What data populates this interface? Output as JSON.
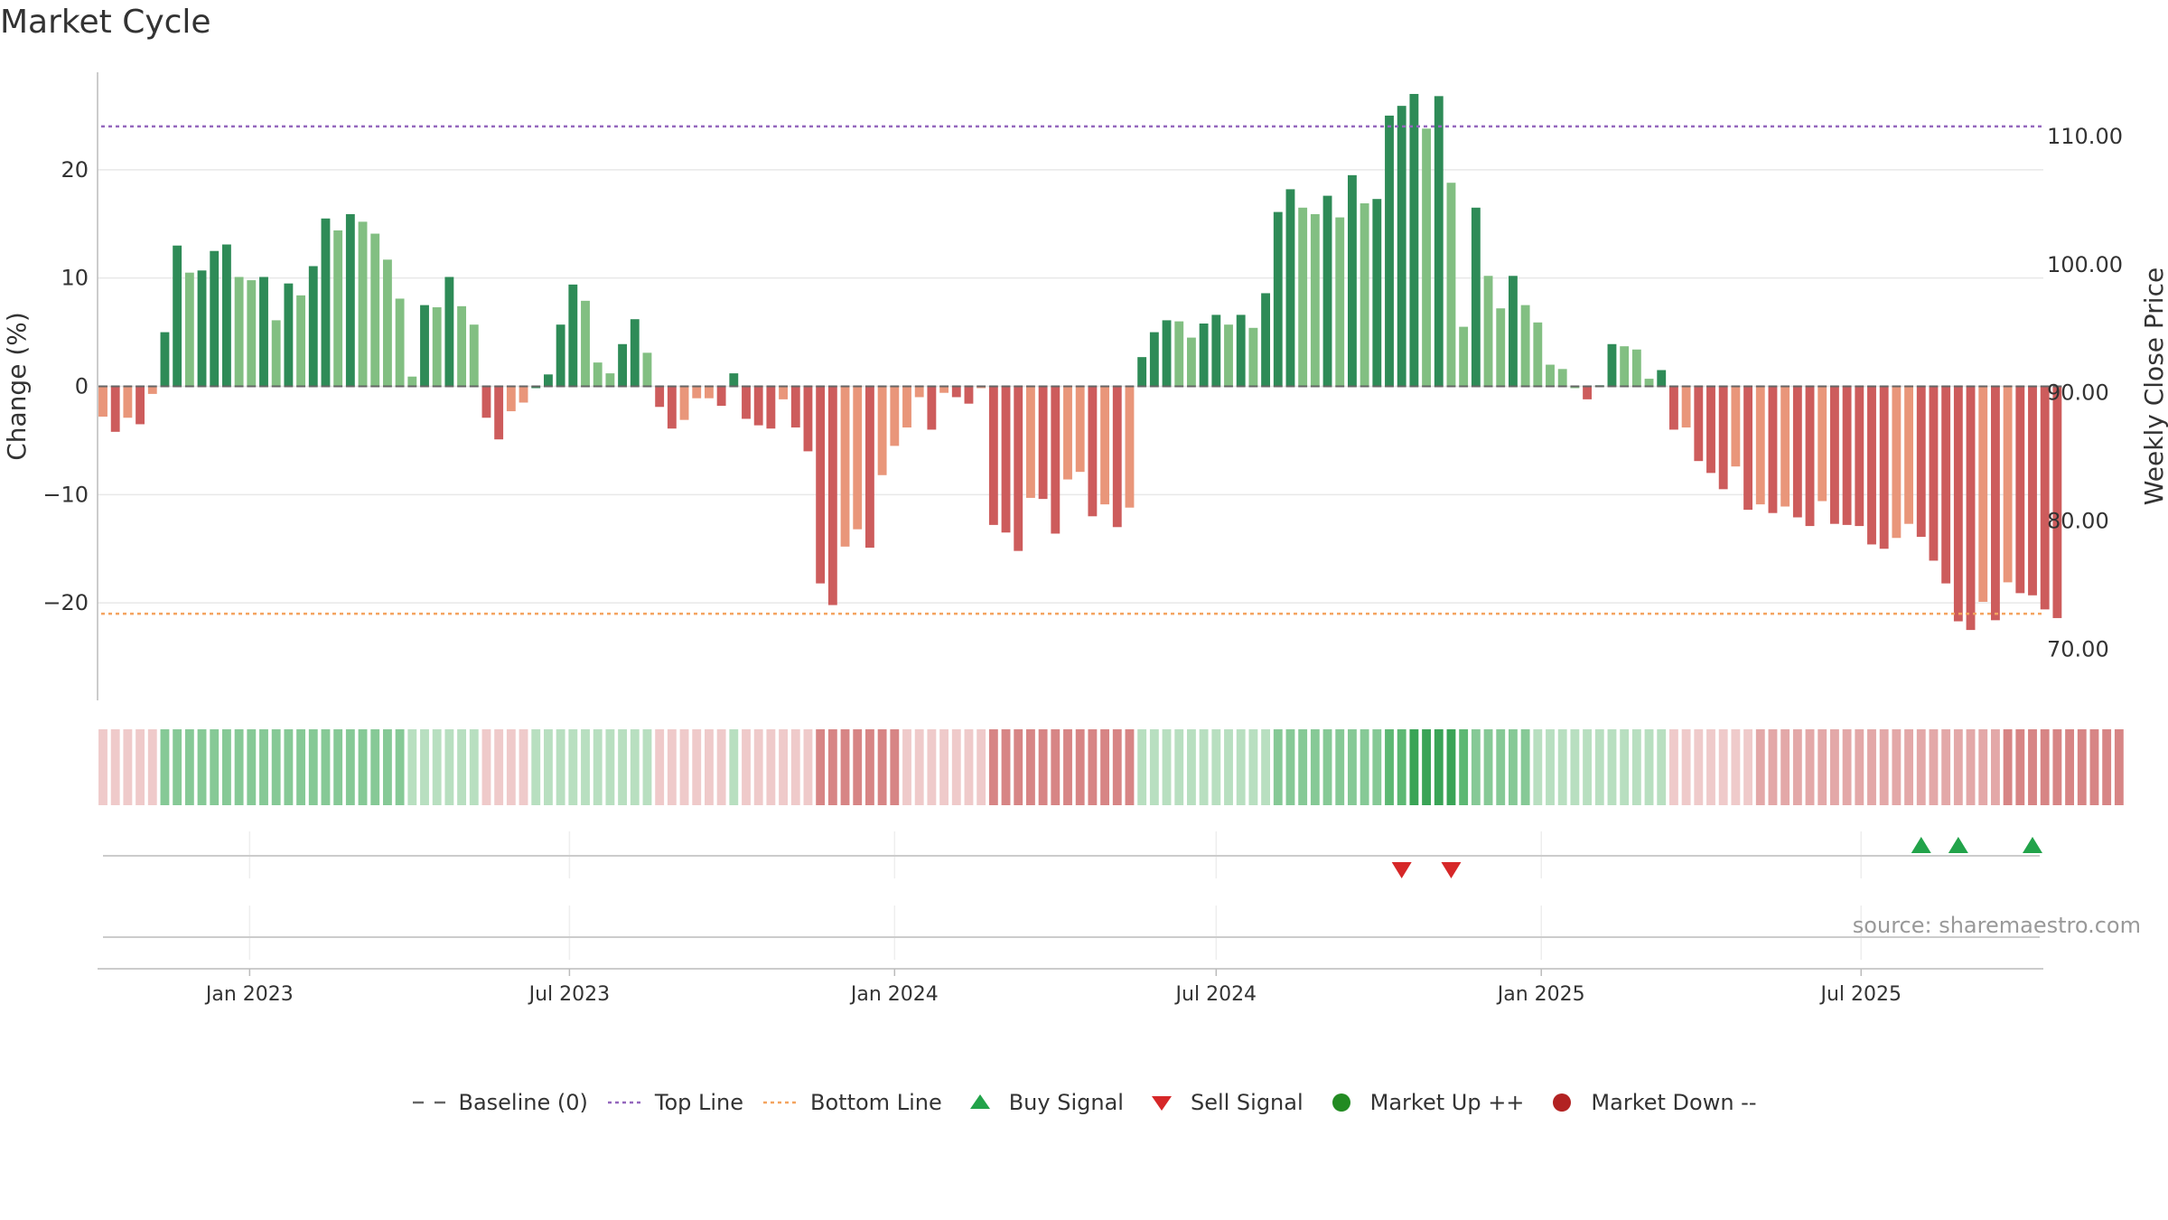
{
  "title": "Market Cycle",
  "source_label": "source: sharemaestro.com",
  "colors": {
    "up_dark": "#2e8b57",
    "up_light": "#82bf82",
    "down_dark": "#cd5c5c",
    "down_light": "#e9967a",
    "top_line": "#9467bd",
    "bottom_line": "#f4a460",
    "buy": "#22a34a",
    "sell": "#d62728",
    "market_up": "#228b22",
    "market_down": "#b22222"
  },
  "legend": [
    {
      "label": "Baseline (0)",
      "symbol": "dash",
      "color": "#666666"
    },
    {
      "label": "Top Line",
      "symbol": "dot-purple",
      "color": "#9467bd"
    },
    {
      "label": "Bottom Line",
      "symbol": "dot-orange",
      "color": "#f4a460"
    },
    {
      "label": "Buy Signal",
      "symbol": "tri-up",
      "color": "#22a34a"
    },
    {
      "label": "Sell Signal",
      "symbol": "tri-down",
      "color": "#d62728"
    },
    {
      "label": "Market Up ++",
      "symbol": "circle",
      "color": "#228b22"
    },
    {
      "label": "Market Down --",
      "symbol": "circle",
      "color": "#b22222"
    }
  ],
  "chart_data": {
    "type": "bar",
    "title": "Market Cycle",
    "ylabel": "Change (%)",
    "y2label": "Weekly Close Price",
    "ylim": [
      -29,
      29
    ],
    "y_ticks": [
      -20,
      -10,
      0,
      10,
      20
    ],
    "y_tick_labels": [
      "−20",
      "−10",
      "0",
      "10",
      "20"
    ],
    "y2_ticks": [
      70,
      80,
      90,
      100,
      110
    ],
    "y2_tick_labels": [
      "70.00",
      "80.00",
      "90.00",
      "100.00",
      "110.00"
    ],
    "y2lim": [
      66,
      115
    ],
    "x_range": [
      "2022-10-10",
      "2025-10-06"
    ],
    "x_ticks": [
      "2023-01-01",
      "2023-07-01",
      "2024-01-01",
      "2024-07-01",
      "2025-01-01",
      "2025-07-01"
    ],
    "x_tick_labels": [
      "Jan 2023",
      "Jul 2023",
      "Jan 2024",
      "Jul 2024",
      "Jan 2025",
      "Jul 2025"
    ],
    "top_line": 24,
    "bottom_line": -21,
    "grid": true,
    "legend_position": "bottom",
    "start_date": "2022-10-10",
    "values": [
      -2.8,
      -4.2,
      -2.9,
      -3.5,
      -0.7,
      5,
      13,
      10.5,
      10.7,
      12.5,
      13.1,
      10.1,
      9.8,
      10.1,
      6.1,
      9.5,
      8.4,
      11.1,
      15.5,
      14.4,
      15.9,
      15.2,
      14.1,
      11.7,
      8.1,
      0.9,
      7.5,
      7.3,
      10.1,
      7.4,
      5.7,
      -2.9,
      -4.9,
      -2.3,
      -1.5,
      0.0,
      1.1,
      5.7,
      9.4,
      7.9,
      2.2,
      1.2,
      3.9,
      6.2,
      3.1,
      -1.9,
      -3.9,
      -3.1,
      -1.1,
      -1.1,
      -1.8,
      1.2,
      -3,
      -3.6,
      -3.9,
      -1.2,
      -3.8,
      -6,
      -18.2,
      -20.2,
      -14.8,
      -13.2,
      -14.9,
      -8.2,
      -5.5,
      -3.8,
      -1,
      -4,
      -0.6,
      -1,
      -1.6,
      -0.1,
      -12.8,
      -13.5,
      -15.2,
      -10.3,
      -10.4,
      -13.6,
      -8.6,
      -7.9,
      -12,
      -10.9,
      -13,
      -11.2,
      2.7,
      5,
      6.1,
      6,
      4.5,
      5.8,
      6.6,
      5.7,
      6.6,
      5.4,
      8.6,
      16.1,
      18.2,
      16.5,
      15.9,
      17.6,
      15.6,
      19.5,
      16.9,
      17.3,
      25,
      25.9,
      27,
      23.8,
      26.8,
      18.8,
      5.5,
      16.5,
      10.2,
      7.2,
      10.2,
      7.5,
      5.9,
      2,
      1.6,
      0.0,
      -1.2,
      0.1,
      3.9,
      3.7,
      3.4,
      0.7,
      1.5,
      -4,
      -3.8,
      -6.9,
      -8,
      -9.5,
      -7.4,
      -11.4,
      -10.9,
      -11.7,
      -11.1,
      -12.1,
      -12.9,
      -10.6,
      -12.7,
      -12.8,
      -12.9,
      -14.6,
      -15,
      -14,
      -12.7,
      -13.9,
      -16.1,
      -18.2,
      -21.7,
      -22.5,
      -19.9,
      -21.6,
      -18.1,
      -19.1,
      -19.3,
      -20.6,
      -21.4
    ],
    "strip_levels": [
      -1,
      -1,
      -1,
      -1,
      -1,
      2,
      2,
      2,
      2,
      2,
      2,
      2,
      2,
      2,
      2,
      2,
      2,
      2,
      2,
      2,
      2,
      2,
      2,
      2,
      2,
      1,
      1,
      1,
      1,
      1,
      1,
      -1,
      -1,
      -1,
      -1,
      1,
      1,
      1,
      1,
      1,
      1,
      1,
      1,
      1,
      1,
      -1,
      -1,
      -1,
      -1,
      -1,
      -1,
      1,
      -1,
      -1,
      -1,
      -1,
      -1,
      -1,
      -3,
      -3,
      -3,
      -3,
      -3,
      -3,
      -3,
      -1,
      -1,
      -1,
      -1,
      -1,
      -1,
      -1,
      -3,
      -3,
      -3,
      -3,
      -3,
      -3,
      -3,
      -3,
      -3,
      -3,
      -3,
      -3,
      1,
      1,
      1,
      1,
      1,
      1,
      1,
      1,
      1,
      1,
      1,
      2,
      2,
      2,
      2,
      2,
      2,
      2,
      2,
      2,
      3,
      3,
      4,
      4,
      4,
      4,
      3,
      2,
      2,
      2,
      2,
      2,
      1,
      1,
      1,
      1,
      1,
      1,
      1,
      1,
      1,
      1,
      1,
      -1,
      -1,
      -1,
      -1,
      -1,
      -1,
      -1,
      -2,
      -2,
      -2,
      -2,
      -2,
      -2,
      -2,
      -2,
      -2,
      -2,
      -2,
      -2,
      -2,
      -2,
      -2,
      -2,
      -2,
      -2,
      -2,
      -2,
      -3,
      -3,
      -3,
      -3,
      -3,
      -3,
      -3,
      -3,
      -3,
      -3
    ],
    "buy_signals": [
      "2025-08-04",
      "2025-08-25",
      "2025-10-06"
    ],
    "sell_signals": [
      "2024-10-14",
      "2024-11-11"
    ]
  }
}
